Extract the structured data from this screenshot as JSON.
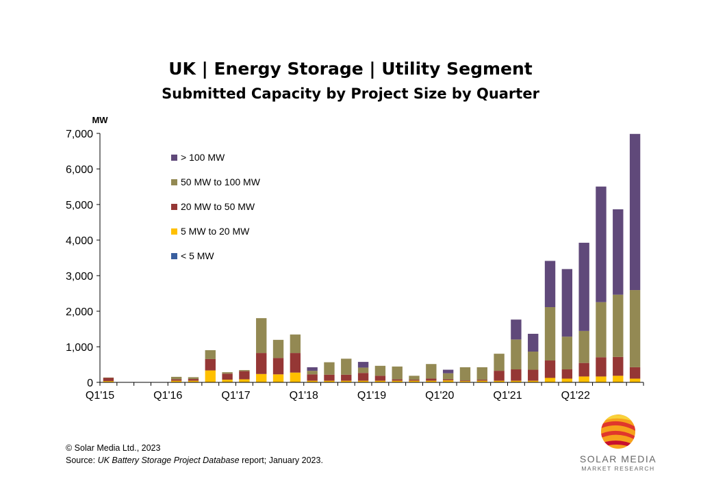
{
  "chart_data": {
    "type": "bar",
    "stacked": true,
    "title": "UK | Energy Storage | Utility Segment",
    "subtitle": "Submitted Capacity by Project Size by Quarter",
    "ylabel": "MW",
    "ylim": [
      0,
      7000
    ],
    "yticks": [
      0,
      1000,
      2000,
      3000,
      4000,
      5000,
      6000,
      7000
    ],
    "ytick_labels": [
      "0",
      "1,000",
      "2,000",
      "3,000",
      "4,000",
      "5,000",
      "6,000",
      "7,000"
    ],
    "categories": [
      "Q1'15",
      "Q2'15",
      "Q3'15",
      "Q4'15",
      "Q1'16",
      "Q2'16",
      "Q3'16",
      "Q4'16",
      "Q1'17",
      "Q2'17",
      "Q3'17",
      "Q4'17",
      "Q1'18",
      "Q2'18",
      "Q3'18",
      "Q4'18",
      "Q1'19",
      "Q2'19",
      "Q3'19",
      "Q4'19",
      "Q1'20",
      "Q2'20",
      "Q3'20",
      "Q4'20",
      "Q1'21",
      "Q2'21",
      "Q3'21",
      "Q4'21",
      "Q1'22",
      "Q2'22",
      "Q3'22",
      "Q4'22"
    ],
    "xtick_labels": [
      "Q1'15",
      "",
      "",
      "",
      "Q1'16",
      "",
      "",
      "",
      "Q1'17",
      "",
      "",
      "",
      "Q1'18",
      "",
      "",
      "",
      "Q1'19",
      "",
      "",
      "",
      "Q1'20",
      "",
      "",
      "",
      "Q1'21",
      "",
      "",
      "",
      "Q1'22",
      "",
      "",
      ""
    ],
    "legend_position": "top-left",
    "series": [
      {
        "name": "< 5 MW",
        "color": "#3a5f9f",
        "values": [
          5,
          0,
          0,
          0,
          5,
          5,
          5,
          5,
          5,
          5,
          5,
          5,
          5,
          5,
          5,
          5,
          5,
          5,
          5,
          5,
          5,
          5,
          5,
          5,
          5,
          5,
          5,
          5,
          5,
          5,
          5,
          5
        ]
      },
      {
        "name": "5 MW to 20 MW",
        "color": "#ffc000",
        "values": [
          30,
          0,
          0,
          0,
          40,
          40,
          330,
          70,
          80,
          230,
          220,
          270,
          40,
          40,
          40,
          40,
          40,
          40,
          40,
          40,
          50,
          30,
          40,
          40,
          40,
          40,
          120,
          100,
          160,
          160,
          180,
          100
        ]
      },
      {
        "name": "20 MW to 50 MW",
        "color": "#953735",
        "values": [
          90,
          0,
          0,
          0,
          40,
          50,
          320,
          170,
          230,
          590,
          460,
          550,
          180,
          170,
          170,
          220,
          140,
          40,
          30,
          60,
          30,
          20,
          30,
          280,
          320,
          310,
          490,
          260,
          380,
          540,
          530,
          320
        ]
      },
      {
        "name": "50 MW to 100 MW",
        "color": "#938953",
        "values": [
          10,
          0,
          0,
          0,
          70,
          50,
          250,
          40,
          30,
          980,
          510,
          520,
          100,
          350,
          450,
          150,
          280,
          360,
          110,
          410,
          170,
          370,
          350,
          480,
          840,
          510,
          1500,
          920,
          900,
          1550,
          1750,
          2170
        ]
      },
      {
        "name": "> 100 MW",
        "color": "#60497a",
        "values": [
          0,
          0,
          0,
          0,
          0,
          0,
          0,
          0,
          0,
          0,
          0,
          0,
          100,
          0,
          0,
          160,
          0,
          0,
          0,
          0,
          100,
          0,
          0,
          0,
          560,
          500,
          1300,
          1900,
          2480,
          3250,
          2400,
          4390
        ]
      }
    ]
  },
  "footer": {
    "copyright": "© Solar Media Ltd., 2023",
    "source_prefix": "Source: ",
    "source_italic": "UK Battery Storage Project Database",
    "source_suffix": " report; January 2023."
  },
  "logo": {
    "name": "SOLAR MEDIA",
    "sub": "MARKET RESEARCH"
  }
}
